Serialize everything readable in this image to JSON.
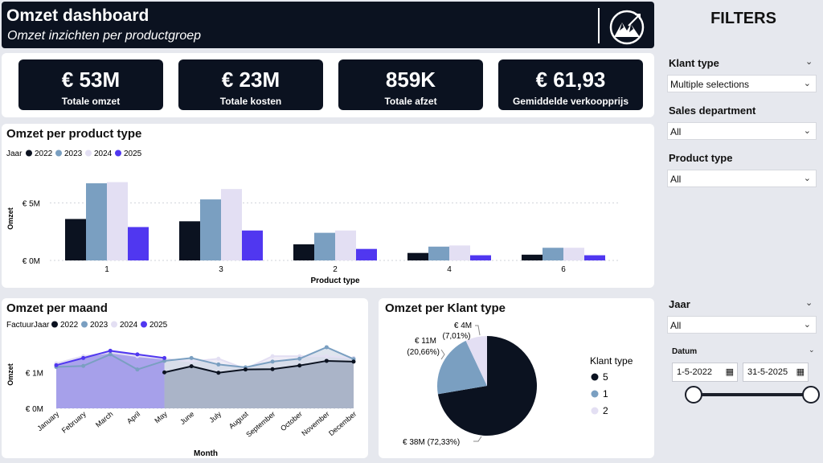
{
  "header": {
    "title": "Omzet dashboard",
    "subtitle": "Omzet inzichten per productgroep"
  },
  "kpis": [
    {
      "value": "€ 53M",
      "label": "Totale omzet"
    },
    {
      "value": "€ 23M",
      "label": "Totale kosten"
    },
    {
      "value": "859K",
      "label": "Totale afzet"
    },
    {
      "value": "€ 61,93",
      "label": "Gemiddelde verkoopprijs"
    }
  ],
  "filters": {
    "title": "FILTERS",
    "klant_type": {
      "label": "Klant type",
      "value": "Multiple selections"
    },
    "sales_department": {
      "label": "Sales department",
      "value": "All"
    },
    "product_type": {
      "label": "Product type",
      "value": "All"
    },
    "jaar": {
      "label": "Jaar",
      "value": "All"
    },
    "datum": {
      "label": "Datum",
      "start": "1-5-2022",
      "end": "31-5-2025"
    }
  },
  "chart_data": [
    {
      "type": "bar",
      "title": "Omzet per product type",
      "legend_title": "Jaar",
      "xlabel": "Product type",
      "ylabel": "Omzet",
      "categories": [
        "1",
        "3",
        "2",
        "4",
        "6"
      ],
      "ylim": [
        0,
        7.4
      ],
      "y_ticks": [
        {
          "value": 0,
          "label": "€ 0M"
        },
        {
          "value": 5,
          "label": "€ 5M"
        }
      ],
      "series": [
        {
          "name": "2022",
          "color": "#0b1220",
          "values": [
            3.6,
            3.4,
            1.4,
            0.65,
            0.5
          ]
        },
        {
          "name": "2023",
          "color": "#7a9fc1",
          "values": [
            6.7,
            5.3,
            2.4,
            1.2,
            1.1
          ]
        },
        {
          "name": "2024",
          "color": "#e3dff3",
          "values": [
            6.8,
            6.2,
            2.6,
            1.3,
            1.1
          ]
        },
        {
          "name": "2025",
          "color": "#5037f0",
          "values": [
            2.9,
            2.6,
            1.0,
            0.45,
            0.45
          ]
        }
      ]
    },
    {
      "type": "line",
      "title": "Omzet per maand",
      "legend_title": "FactuurJaar",
      "xlabel": "Month",
      "ylabel": "Omzet",
      "categories": [
        "January",
        "February",
        "March",
        "April",
        "May",
        "June",
        "July",
        "August",
        "September",
        "October",
        "November",
        "December"
      ],
      "ylim": [
        0,
        1.9
      ],
      "y_ticks": [
        {
          "value": 0,
          "label": "€ 0M"
        },
        {
          "value": 1,
          "label": "€ 1M"
        }
      ],
      "series": [
        {
          "name": "2022",
          "color": "#0b1220",
          "values": [
            null,
            null,
            null,
            null,
            1.0,
            1.17,
            0.99,
            1.08,
            1.09,
            1.19,
            1.32,
            1.3
          ]
        },
        {
          "name": "2023",
          "color": "#7a9fc1",
          "values": [
            1.15,
            1.18,
            1.5,
            1.08,
            1.32,
            1.4,
            1.22,
            1.14,
            1.3,
            1.38,
            1.7,
            1.37
          ]
        },
        {
          "name": "2024",
          "color": "#e3dff3",
          "values": [
            1.25,
            1.45,
            1.55,
            1.45,
            1.38,
            1.3,
            1.38,
            1.1,
            1.45,
            1.45,
            1.45,
            1.4
          ]
        },
        {
          "name": "2025",
          "color": "#5037f0",
          "values": [
            1.2,
            1.4,
            1.6,
            1.5,
            1.4,
            null,
            null,
            null,
            null,
            null,
            null,
            null
          ]
        }
      ]
    },
    {
      "type": "pie",
      "title": "Omzet per Klant type",
      "legend_title": "Klant type",
      "slices": [
        {
          "name": "5",
          "value": 38,
          "label": "€ 38M (72,33%)",
          "percent": 72.33,
          "color": "#0b1220"
        },
        {
          "name": "1",
          "value": 11,
          "label": "€ 11M (20,66%)",
          "percent": 20.66,
          "color": "#7a9fc1"
        },
        {
          "name": "2",
          "value": 4,
          "label": "€ 4M (7,01%)",
          "percent": 7.01,
          "color": "#e3dff3"
        }
      ]
    }
  ]
}
